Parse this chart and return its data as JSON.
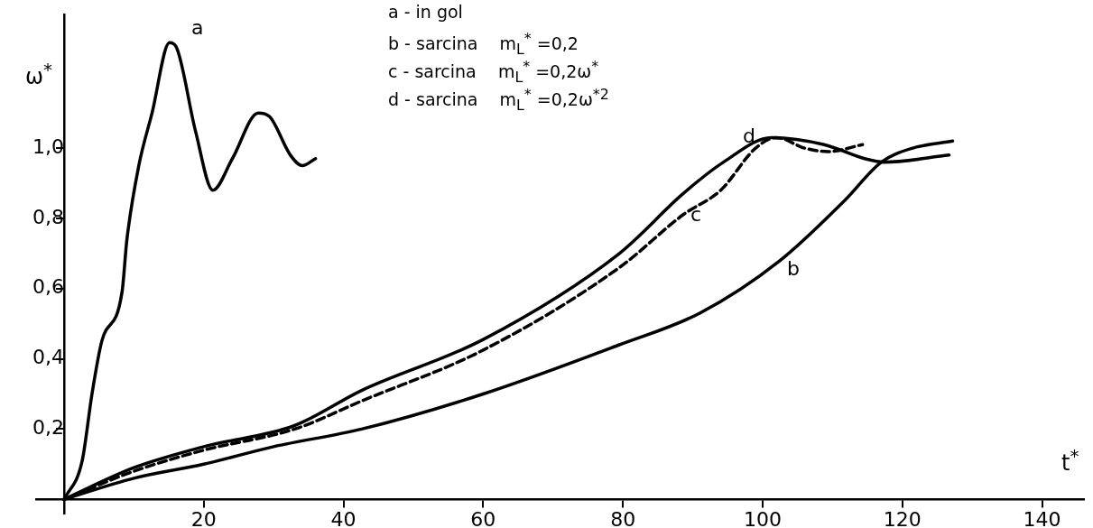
{
  "chart_data": {
    "type": "line",
    "xlabel": "t$^{*}$",
    "ylabel": "ω$^{*}$",
    "xlim": [
      -4,
      146
    ],
    "ylim": [
      -0.04,
      1.38
    ],
    "xticks": [
      {
        "value": 0,
        "label": null
      },
      20,
      40,
      60,
      80,
      100,
      120,
      140
    ],
    "yticks": [
      {
        "value": 0.2,
        "label": "0,2"
      },
      {
        "value": 0.4,
        "label": "0,4"
      },
      {
        "value": 0.6,
        "label": "0,6"
      },
      {
        "value": 0.8,
        "label": "0,8"
      },
      {
        "value": 1.0,
        "label": "1,0"
      }
    ],
    "grid": false,
    "legend": false,
    "marker": "none",
    "series": [
      {
        "color": "#000000",
        "line_style": "solid",
        "x": [
          0,
          2.6,
          4,
          5.4,
          8.3,
          9,
          10.7,
          12.6,
          15.1,
          16,
          18.8,
          21.3,
          24.1,
          27.8,
          29.4,
          32.4,
          34.1,
          36
        ],
        "values": [
          0,
          0.11,
          0.3,
          0.45,
          0.59,
          0.74,
          0.95,
          1.1,
          1.3,
          1.29,
          1.05,
          0.88,
          0.97,
          1.1,
          1.09,
          0.98,
          0.95,
          0.97
        ]
      },
      {
        "color": "#000000",
        "line_style": "solid",
        "x": [
          0,
          10,
          20,
          30,
          42.6,
          60,
          79.5,
          91,
          102.5,
          111.7,
          117,
          121.5,
          127.2
        ],
        "values": [
          0,
          0.06,
          0.1,
          0.15,
          0.2,
          0.3,
          0.44,
          0.53,
          0.68,
          0.85,
          0.96,
          1.0,
          1.02
        ]
      },
      {
        "color": "#000000",
        "line_style": "dashed",
        "x": [
          0,
          10,
          20,
          33,
          42.6,
          60,
          79.5,
          88.6,
          94,
          99,
          102,
          106,
          109.4,
          114.3
        ],
        "values": [
          0,
          0.08,
          0.14,
          0.2,
          0.28,
          0.425,
          0.66,
          0.81,
          0.88,
          1.0,
          1.03,
          1.0,
          0.99,
          1.01
        ]
      },
      {
        "color": "#000000",
        "line_style": "solid",
        "x": [
          0,
          10,
          20,
          33,
          42.6,
          60,
          79.5,
          88.6,
          94.4,
          101.3,
          108.8,
          114.6,
          117.4,
          126.7
        ],
        "values": [
          0,
          0.09,
          0.15,
          0.21,
          0.31,
          0.455,
          0.7,
          0.87,
          0.96,
          1.03,
          1.01,
          0.97,
          0.96,
          0.98
        ]
      }
    ],
    "annotations": [
      "a",
      "b",
      "c",
      "d",
      "a - in gol",
      "b - sarcina    m$_{L}$$^{*}$ =0,2",
      "c - sarcina    m$_{L}$$^{*}$ =0,2ω$^{*}$",
      "d - sarcina    m$_{L}$$^{*}$ =0,2ω$^{*2}$"
    ]
  }
}
